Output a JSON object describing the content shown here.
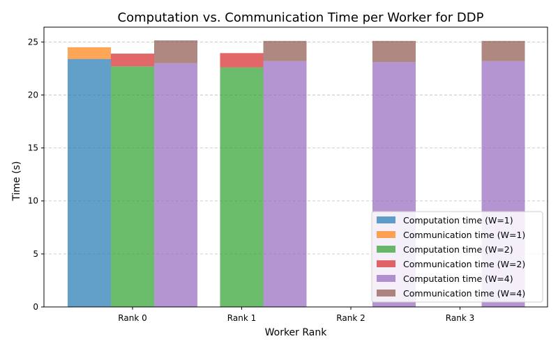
{
  "chart_data": {
    "type": "bar",
    "stacked": true,
    "title": "Computation vs. Communication Time per Worker for DDP",
    "xlabel": "Worker Rank",
    "ylabel": "Time (s)",
    "categories": [
      "Rank 0",
      "Rank 1",
      "Rank 2",
      "Rank 3"
    ],
    "ylim": [
      0,
      26.4
    ],
    "yticks": [
      0,
      5,
      10,
      15,
      20,
      25
    ],
    "grid": "y-dashed",
    "legend_position": "bottom-right",
    "groups": [
      {
        "workers": "W=1",
        "computation": [
          23.4,
          null,
          null,
          null
        ],
        "communication": [
          1.1,
          null,
          null,
          null
        ],
        "colors": {
          "computation": "#1f77b4",
          "communication": "#ff7f0e"
        }
      },
      {
        "workers": "W=2",
        "computation": [
          22.7,
          22.6,
          null,
          null
        ],
        "communication": [
          1.2,
          1.35,
          null,
          null
        ],
        "colors": {
          "computation": "#2ca02c",
          "communication": "#d62728"
        }
      },
      {
        "workers": "W=4",
        "computation": [
          23.0,
          23.2,
          23.1,
          23.2
        ],
        "communication": [
          2.15,
          1.9,
          2.0,
          1.9
        ],
        "colors": {
          "computation": "#9467bd",
          "communication": "#8c564b"
        }
      }
    ],
    "legend": [
      {
        "label": "Computation time (W=1)",
        "color": "#1f77b4"
      },
      {
        "label": "Communication time (W=1)",
        "color": "#ff7f0e"
      },
      {
        "label": "Computation time (W=2)",
        "color": "#2ca02c"
      },
      {
        "label": "Communication time (W=2)",
        "color": "#d62728"
      },
      {
        "label": "Computation time (W=4)",
        "color": "#9467bd"
      },
      {
        "label": "Communication time (W=4)",
        "color": "#8c564b"
      }
    ]
  }
}
